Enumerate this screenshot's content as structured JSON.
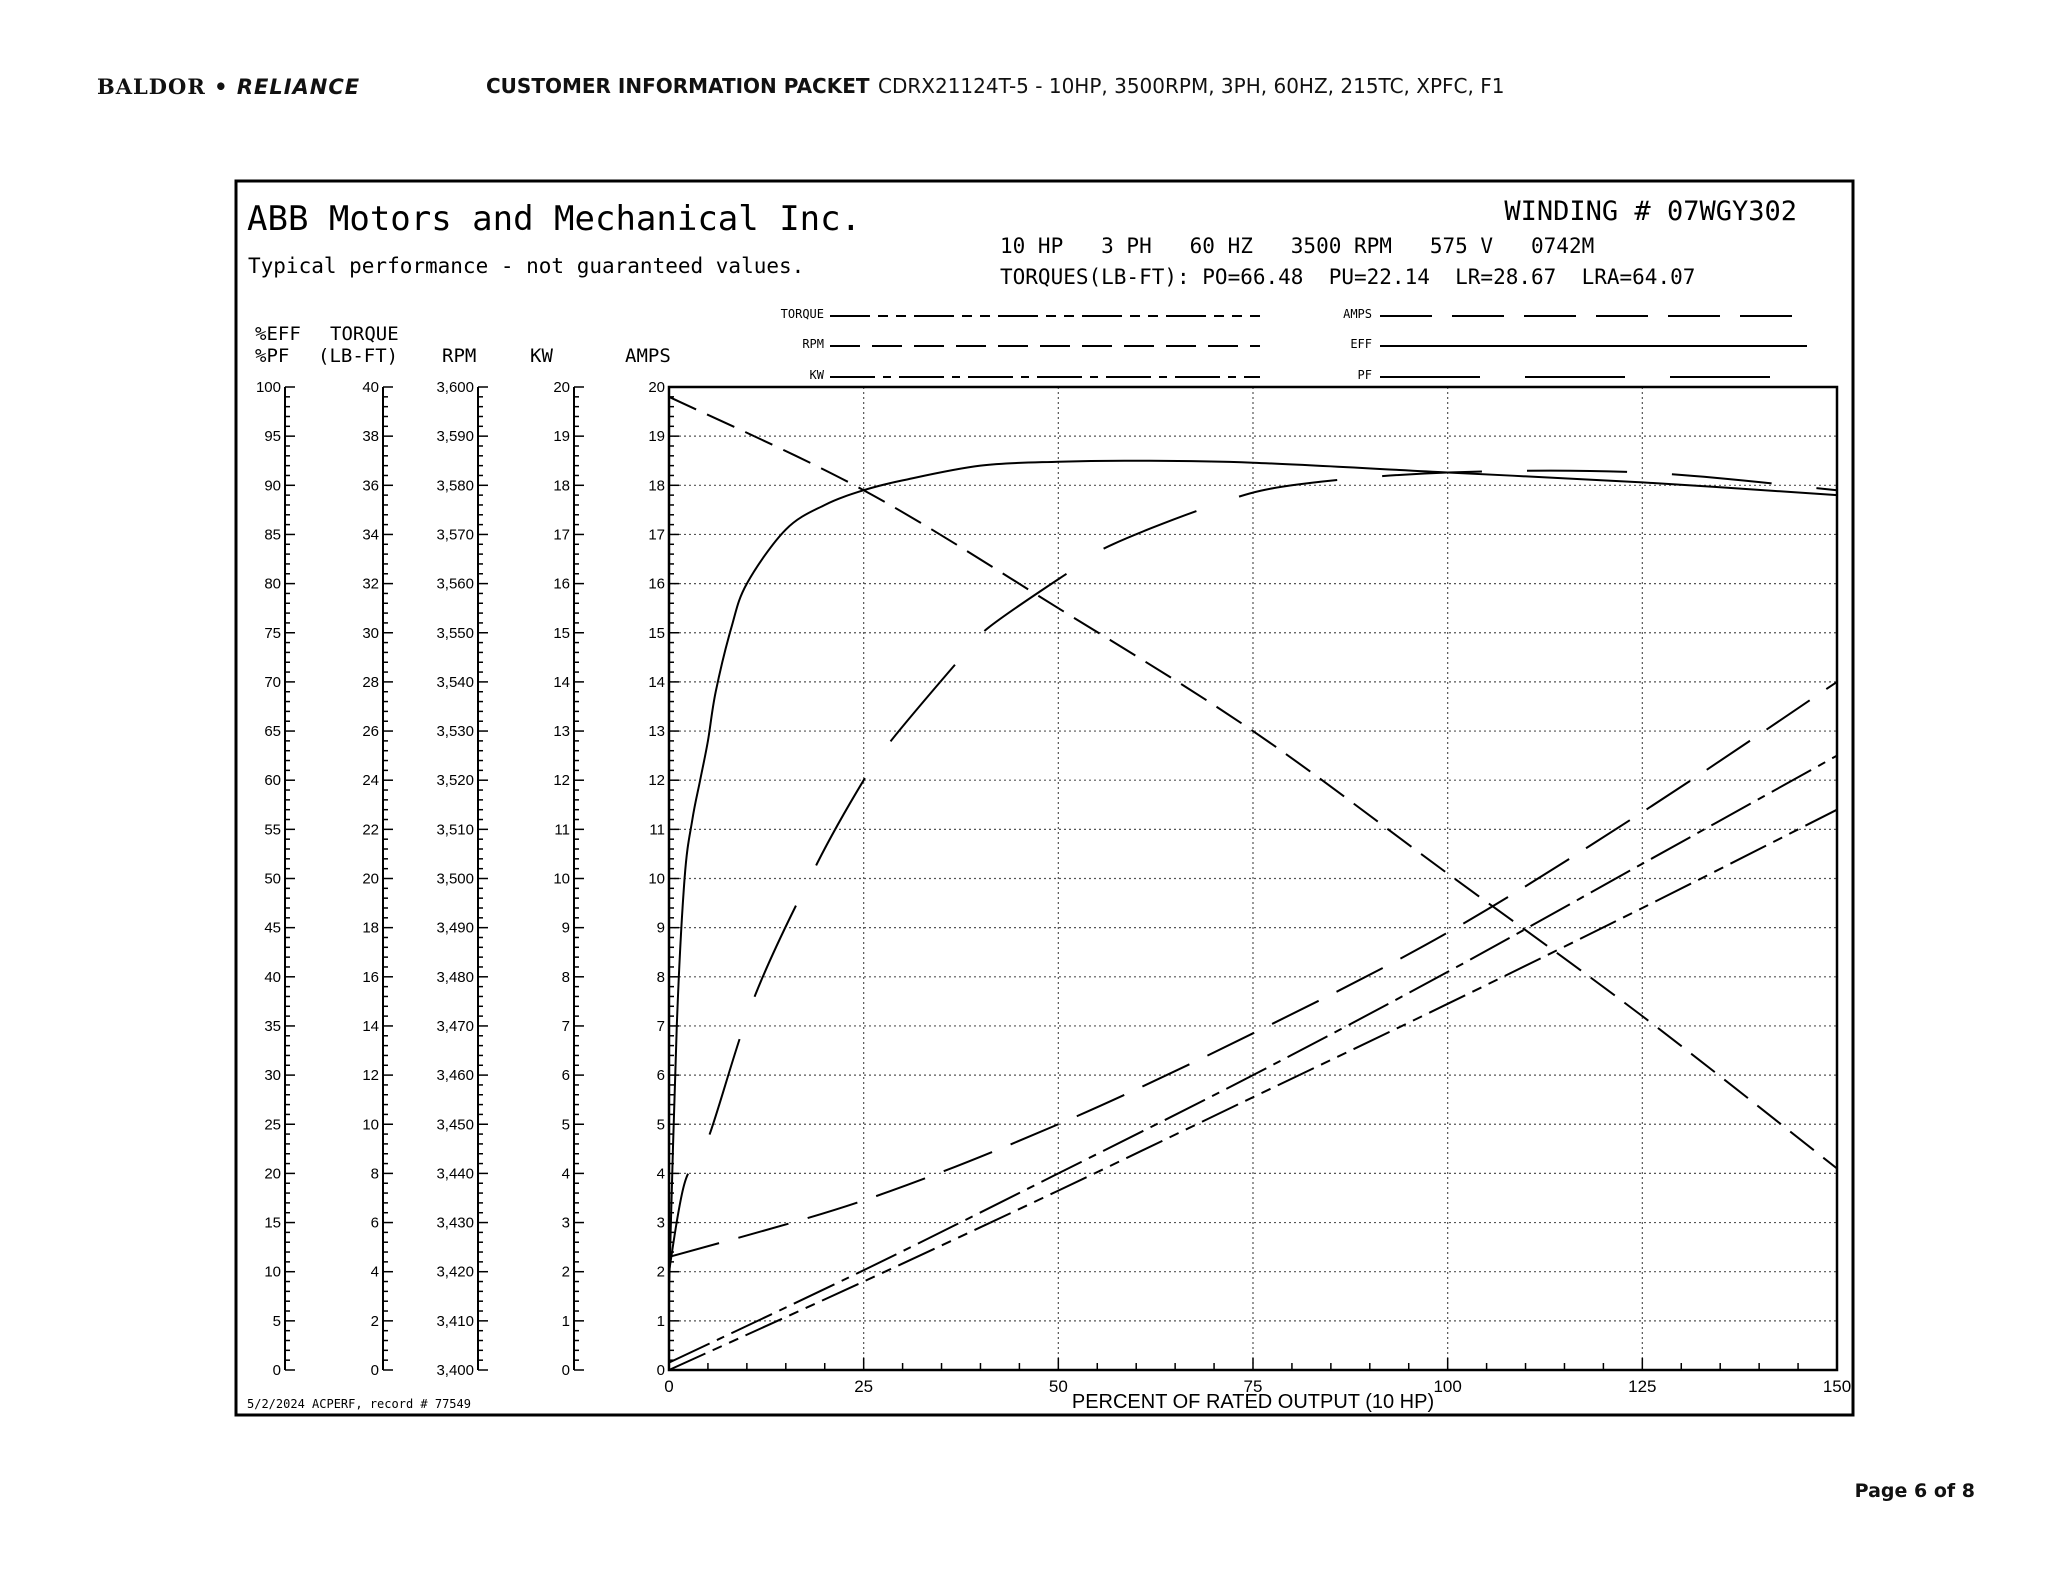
{
  "header": {
    "logo_left": "BALDOR",
    "logo_right": "RELIANCE",
    "packet_title": "CUSTOMER INFORMATION PACKET",
    "part_description": "CDRX21124T-5 - 10HP, 3500RPM, 3PH, 60HZ, 215TC, XPFC, F1"
  },
  "footer": {
    "page": "Page 6 of 8"
  },
  "chart_data": {
    "type": "line",
    "company": "ABB Motors and Mechanical Inc.",
    "disclaimer": "Typical performance - not guaranteed values.",
    "winding": "WINDING # 07WGY302",
    "ratings": "10 HP   3 PH   60 HZ   3500 RPM   575 V   0742M",
    "torques": "TORQUES(LB-FT): PO=66.48  PU=22.14  LR=28.67  LRA=64.07",
    "record": "5/2/2024 ACPERF, record # 77549",
    "xlabel": "PERCENT OF RATED OUTPUT (10 HP)",
    "xlim": [
      0,
      150
    ],
    "xticks": [
      "0",
      "25",
      "50",
      "75",
      "100",
      "125",
      "150"
    ],
    "grid": true,
    "axis_headers": {
      "eff_top": "%EFF",
      "eff_bottom": "%PF",
      "torque_top": "TORQUE",
      "torque_bottom": "(LB-FT)",
      "rpm": "RPM",
      "kw": "KW",
      "amps": "AMPS"
    },
    "y_axes": [
      {
        "name": "%EFF / %PF",
        "range": [
          0,
          100
        ],
        "ticks": [
          "0",
          "5",
          "10",
          "15",
          "20",
          "25",
          "30",
          "35",
          "40",
          "45",
          "50",
          "55",
          "60",
          "65",
          "70",
          "75",
          "80",
          "85",
          "90",
          "95",
          "100"
        ]
      },
      {
        "name": "TORQUE (LB-FT)",
        "range": [
          0,
          40
        ],
        "ticks": [
          "0",
          "2",
          "4",
          "6",
          "8",
          "10",
          "12",
          "14",
          "16",
          "18",
          "20",
          "22",
          "24",
          "26",
          "28",
          "30",
          "32",
          "34",
          "36",
          "38",
          "40"
        ]
      },
      {
        "name": "RPM",
        "range": [
          3400,
          3600
        ],
        "ticks": [
          "3,400",
          "3,410",
          "3,420",
          "3,430",
          "3,440",
          "3,450",
          "3,460",
          "3,470",
          "3,480",
          "3,490",
          "3,500",
          "3,510",
          "3,520",
          "3,530",
          "3,540",
          "3,550",
          "3,560",
          "3,570",
          "3,580",
          "3,590",
          "3,600"
        ]
      },
      {
        "name": "KW",
        "range": [
          0,
          20
        ],
        "ticks": [
          "0",
          "1",
          "2",
          "3",
          "4",
          "5",
          "6",
          "7",
          "8",
          "9",
          "10",
          "11",
          "12",
          "13",
          "14",
          "15",
          "16",
          "17",
          "18",
          "19",
          "20"
        ]
      },
      {
        "name": "AMPS",
        "range": [
          0,
          20
        ],
        "ticks": [
          "0",
          "1",
          "2",
          "3",
          "4",
          "5",
          "6",
          "7",
          "8",
          "9",
          "10",
          "11",
          "12",
          "13",
          "14",
          "15",
          "16",
          "17",
          "18",
          "19",
          "20"
        ]
      }
    ],
    "legend": [
      {
        "label": "TORQUE",
        "style": "long-short-short dash"
      },
      {
        "label": "RPM",
        "style": "dash"
      },
      {
        "label": "KW",
        "style": "long-short dash"
      },
      {
        "label": "AMPS",
        "style": "long dash"
      },
      {
        "label": "EFF",
        "style": "solid"
      },
      {
        "label": "PF",
        "style": "very long dash"
      }
    ],
    "series": [
      {
        "name": "TORQUE",
        "axis": "TORQUE (LB-FT)",
        "x": [
          0,
          25,
          50,
          75,
          100,
          125,
          150
        ],
        "y": [
          0,
          3.6,
          7.3,
          11.1,
          14.9,
          18.8,
          22.8
        ]
      },
      {
        "name": "RPM",
        "axis": "RPM",
        "x": [
          0,
          25,
          50,
          75,
          100,
          125,
          150
        ],
        "y": [
          3598,
          3579,
          3555,
          3530,
          3501,
          3472,
          3441
        ]
      },
      {
        "name": "KW",
        "axis": "KW",
        "x": [
          0,
          25,
          50,
          75,
          100,
          125,
          150
        ],
        "y": [
          0.15,
          2.03,
          4.0,
          6.0,
          8.1,
          10.3,
          12.5
        ]
      },
      {
        "name": "AMPS",
        "axis": "AMPS",
        "x": [
          0,
          25,
          50,
          75,
          100,
          125,
          150
        ],
        "y": [
          2.3,
          3.45,
          5.0,
          6.85,
          8.9,
          11.35,
          14.0
        ]
      },
      {
        "name": "EFF",
        "axis": "%EFF",
        "x": [
          0,
          1,
          2,
          3,
          4,
          5,
          6,
          8,
          10,
          15,
          20,
          25,
          30,
          40,
          50,
          60,
          75,
          100,
          125,
          150
        ],
        "y": [
          8,
          35,
          50,
          56,
          60,
          64,
          69,
          75.5,
          80,
          85.5,
          88,
          89.5,
          90.5,
          92,
          92.4,
          92.5,
          92.3,
          91.3,
          90.3,
          89
        ]
      },
      {
        "name": "PF",
        "axis": "%PF",
        "x": [
          0,
          2,
          5,
          11,
          19,
          25,
          28.5,
          37,
          41,
          52,
          57,
          70,
          80,
          100,
          125,
          150
        ],
        "y": [
          10,
          19,
          23.5,
          38,
          51.5,
          60,
          64,
          72,
          75.5,
          81.5,
          84,
          88,
          90,
          91.3,
          91.3,
          89.5
        ]
      }
    ]
  }
}
